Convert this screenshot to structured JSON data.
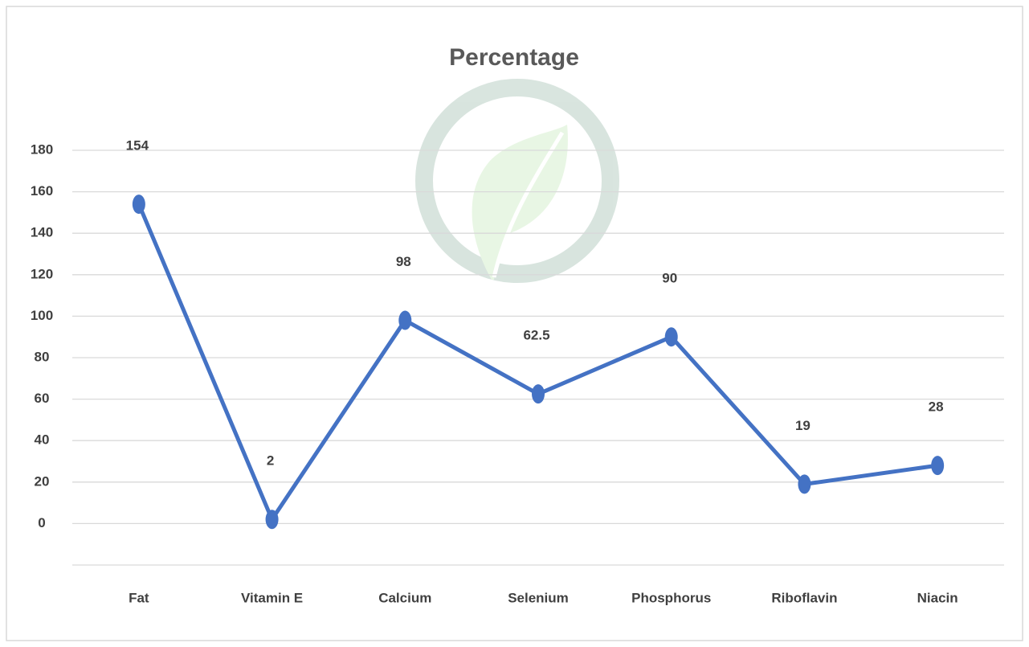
{
  "chart_data": {
    "type": "line",
    "title": "Percentage",
    "categories": [
      "Fat",
      "Vitamin E",
      "Calcium",
      "Selenium",
      "Phosphorus",
      "Riboflavin",
      "Niacin"
    ],
    "values": [
      154,
      2,
      98,
      62.5,
      90,
      19,
      28
    ],
    "color": "#4472c4",
    "ylim": [
      -20,
      180
    ],
    "yticks": [
      0,
      20,
      40,
      60,
      80,
      100,
      120,
      140,
      160,
      180
    ],
    "grid": true
  }
}
